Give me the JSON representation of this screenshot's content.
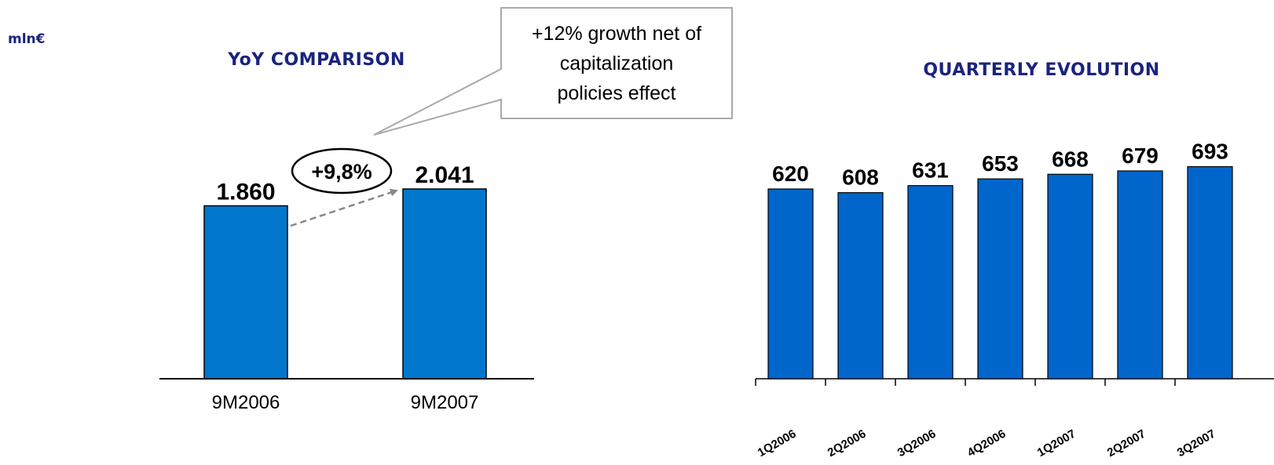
{
  "unit_label": "mln€",
  "callout": {
    "growth_badge": "+9,8%",
    "note_lines": [
      "+12% growth net of",
      "capitalization",
      "policies effect"
    ]
  },
  "colors": {
    "title": "#1a237e",
    "yoy_bar": "#0077cc",
    "quarterly_bar": "#0066cc",
    "arrow": "#888888"
  },
  "chart_data": [
    {
      "type": "bar",
      "title": "YoY COMPARISON",
      "categories": [
        "9M2006",
        "9M2007"
      ],
      "values": [
        1860,
        2041
      ],
      "value_labels": [
        "1.860",
        "2.041"
      ],
      "ylim": [
        0,
        2500
      ],
      "grid": false
    },
    {
      "type": "bar",
      "title": "QUARTERLY EVOLUTION",
      "categories": [
        "1Q2006",
        "2Q2006",
        "3Q2006",
        "4Q2006",
        "1Q2007",
        "2Q2007",
        "3Q2007"
      ],
      "values": [
        620,
        608,
        631,
        653,
        668,
        679,
        693
      ],
      "value_labels": [
        "620",
        "608",
        "631",
        "653",
        "668",
        "679",
        "693"
      ],
      "ylim": [
        0,
        850
      ],
      "grid": false
    }
  ]
}
